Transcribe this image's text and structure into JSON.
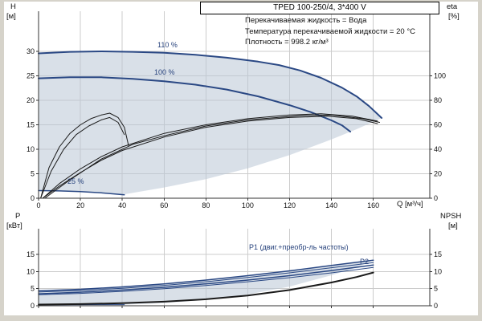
{
  "header": {
    "model": "TPED 100-250/4, 3*400 V",
    "info_lines": [
      "Перекачиваемая жидкость = Вода",
      "Температура перекачиваемой жидкости = 20 °C",
      "Плотность = 998.2 кг/м³"
    ]
  },
  "colors": {
    "accent_curve": "#2a4884",
    "black_curve": "#1a1a1a",
    "band_fill": "#b9c7d6",
    "grid": "#cccccc",
    "axis": "#333333",
    "frame_bg": "#d6d3ca",
    "plot_bg": "#ffffff",
    "label_blue": "#27427c"
  },
  "chart_data": [
    {
      "type": "line",
      "title": "Head and efficiency curves",
      "x_axis": {
        "label": "Q [м³/ч]",
        "min": 0,
        "max": 187,
        "ticks": [
          0,
          20,
          40,
          60,
          80,
          100,
          120,
          140,
          160
        ]
      },
      "y_left": {
        "label": "H",
        "unit": "[м]",
        "min": 0,
        "max": 38.2,
        "ticks": [
          0,
          5,
          10,
          15,
          20,
          25,
          30
        ]
      },
      "y_right": {
        "label": "eta",
        "unit": "[%]",
        "min": 0,
        "max": 152.8,
        "ticks": [
          0,
          20,
          40,
          60,
          80,
          100
        ]
      },
      "grid": true,
      "legend_position": "none",
      "curve_labels": [
        {
          "text": "110 %",
          "q": 60,
          "h": 31.2
        },
        {
          "text": "100 %",
          "q": 56,
          "h": 25.6
        },
        {
          "text": "25 %",
          "q": 15,
          "h": 3.2
        }
      ],
      "band": {
        "name": "allowed-operating-envelope",
        "opacity": 0.55,
        "points": [
          [
            0,
            1.6
          ],
          [
            0,
            29.6
          ],
          [
            15,
            29.9
          ],
          [
            30,
            30.0
          ],
          [
            45,
            29.9
          ],
          [
            60,
            29.7
          ],
          [
            75,
            29.3
          ],
          [
            90,
            28.7
          ],
          [
            105,
            27.9
          ],
          [
            115,
            27.2
          ],
          [
            125,
            26.1
          ],
          [
            135,
            24.6
          ],
          [
            145,
            22.6
          ],
          [
            152,
            20.8
          ],
          [
            158,
            18.8
          ],
          [
            164,
            16.4
          ],
          [
            160,
            15.6
          ],
          [
            152,
            14.1
          ],
          [
            140,
            12.0
          ],
          [
            120,
            8.8
          ],
          [
            100,
            6.1
          ],
          [
            80,
            3.9
          ],
          [
            60,
            2.2
          ],
          [
            41,
            0.8
          ],
          [
            30,
            1.1
          ],
          [
            20,
            1.35
          ],
          [
            10,
            1.5
          ]
        ]
      },
      "series": [
        {
          "name": "head-110-pct",
          "axis": "left",
          "color": "accent_curve",
          "width": 2,
          "points": [
            [
              0,
              29.6
            ],
            [
              15,
              29.9
            ],
            [
              30,
              30.0
            ],
            [
              45,
              29.9
            ],
            [
              60,
              29.7
            ],
            [
              75,
              29.3
            ],
            [
              90,
              28.7
            ],
            [
              105,
              27.9
            ],
            [
              115,
              27.2
            ],
            [
              125,
              26.1
            ],
            [
              135,
              24.6
            ],
            [
              145,
              22.6
            ],
            [
              152,
              20.8
            ],
            [
              158,
              18.8
            ],
            [
              164,
              16.4
            ]
          ]
        },
        {
          "name": "head-100-pct",
          "axis": "left",
          "color": "accent_curve",
          "width": 2,
          "points": [
            [
              0,
              24.5
            ],
            [
              15,
              24.7
            ],
            [
              30,
              24.7
            ],
            [
              45,
              24.4
            ],
            [
              60,
              23.9
            ],
            [
              75,
              23.2
            ],
            [
              90,
              22.2
            ],
            [
              105,
              20.8
            ],
            [
              120,
              19.0
            ],
            [
              130,
              17.6
            ],
            [
              140,
              15.9
            ],
            [
              145,
              14.9
            ],
            [
              149,
              13.6
            ]
          ]
        },
        {
          "name": "head-25-pct",
          "axis": "left",
          "color": "accent_curve",
          "width": 1.5,
          "points": [
            [
              0,
              1.55
            ],
            [
              10,
              1.5
            ],
            [
              20,
              1.35
            ],
            [
              30,
              1.1
            ],
            [
              41,
              0.7
            ]
          ]
        },
        {
          "name": "eff-pump-1",
          "axis": "right",
          "color": "black_curve",
          "width": 1,
          "points": [
            [
              2,
              0
            ],
            [
              10,
              12
            ],
            [
              20,
              24
            ],
            [
              30,
              34
            ],
            [
              40,
              42
            ],
            [
              60,
              53
            ],
            [
              80,
              60
            ],
            [
              100,
              65
            ],
            [
              120,
              68
            ],
            [
              135,
              69
            ],
            [
              150,
              67
            ],
            [
              162,
              63
            ]
          ]
        },
        {
          "name": "eff-pump-2",
          "axis": "right",
          "color": "black_curve",
          "width": 1,
          "points": [
            [
              2,
              0
            ],
            [
              10,
              10
            ],
            [
              20,
              21
            ],
            [
              30,
              31
            ],
            [
              40,
              39
            ],
            [
              60,
              50
            ],
            [
              80,
              58
            ],
            [
              100,
              63
            ],
            [
              120,
              66
            ],
            [
              138,
              67
            ],
            [
              152,
              65
            ],
            [
              162,
              61
            ]
          ]
        },
        {
          "name": "eff-pump-3",
          "axis": "right",
          "color": "black_curve",
          "width": 1,
          "points": [
            [
              3,
              0
            ],
            [
              15,
              15
            ],
            [
              30,
              32
            ],
            [
              45,
              44
            ],
            [
              60,
              51
            ],
            [
              80,
              59
            ],
            [
              100,
              64
            ],
            [
              125,
              67.5
            ],
            [
              140,
              68
            ],
            [
              155,
              65
            ],
            [
              163,
              62
            ]
          ]
        },
        {
          "name": "eff-25-a",
          "axis": "right",
          "color": "black_curve",
          "width": 1,
          "points": [
            [
              1,
              0
            ],
            [
              5,
              25
            ],
            [
              10,
              42
            ],
            [
              15,
              53
            ],
            [
              20,
              60
            ],
            [
              25,
              65
            ],
            [
              30,
              68
            ],
            [
              34,
              69.5
            ],
            [
              38,
              66
            ],
            [
              41,
              58
            ],
            [
              43,
              43
            ]
          ]
        },
        {
          "name": "eff-25-b",
          "axis": "right",
          "color": "black_curve",
          "width": 1,
          "points": [
            [
              1,
              0
            ],
            [
              6,
              22
            ],
            [
              12,
              40
            ],
            [
              18,
              52
            ],
            [
              24,
              59
            ],
            [
              30,
              64
            ],
            [
              34,
              66
            ],
            [
              38,
              62
            ],
            [
              41,
              52
            ]
          ]
        }
      ]
    },
    {
      "type": "line",
      "title": "Power and NPSH curves",
      "x_axis": {
        "label": "",
        "min": 0,
        "max": 187,
        "ticks": [
          0,
          20,
          40,
          60,
          80,
          100,
          120,
          140,
          160
        ]
      },
      "y_left": {
        "label": "P",
        "unit": "[кВт]",
        "min": 0,
        "max": 22.5,
        "ticks": [
          0,
          5,
          10,
          15
        ]
      },
      "y_right": {
        "label": "NPSH",
        "unit": "[м]",
        "min": 0,
        "max": 22.5,
        "ticks": [
          0,
          5,
          10,
          15
        ]
      },
      "grid": true,
      "legend_position": "none",
      "curve_labels": [
        {
          "text": "P1  (двиг.+преобр-ль частоты)",
          "q": 101,
          "p": 17.0
        },
        {
          "text": "P2",
          "q": 154,
          "p": 13.0
        }
      ],
      "band": {
        "name": "power-operating-envelope",
        "opacity": 0.55,
        "points": [
          [
            0,
            0.28
          ],
          [
            0,
            4.35
          ],
          [
            20,
            4.8
          ],
          [
            40,
            5.5
          ],
          [
            60,
            6.4
          ],
          [
            80,
            7.5
          ],
          [
            100,
            8.8
          ],
          [
            120,
            10.2
          ],
          [
            140,
            11.8
          ],
          [
            160,
            13.3
          ],
          [
            150,
            10.8
          ],
          [
            140,
            8.9
          ],
          [
            120,
            5.6
          ],
          [
            100,
            3.3
          ],
          [
            80,
            1.7
          ],
          [
            60,
            0.8
          ],
          [
            41,
            0.33
          ],
          [
            20,
            0.3
          ],
          [
            10,
            0.29
          ]
        ]
      },
      "series": [
        {
          "name": "p1-upper",
          "axis": "left",
          "color": "accent_curve",
          "width": 1.5,
          "points": [
            [
              0,
              4.35
            ],
            [
              20,
              4.8
            ],
            [
              40,
              5.5
            ],
            [
              60,
              6.4
            ],
            [
              80,
              7.5
            ],
            [
              100,
              8.8
            ],
            [
              120,
              10.2
            ],
            [
              140,
              11.8
            ],
            [
              160,
              13.3
            ]
          ]
        },
        {
          "name": "p1-lower",
          "axis": "left",
          "color": "accent_curve",
          "width": 1,
          "points": [
            [
              0,
              4.0
            ],
            [
              20,
              4.45
            ],
            [
              40,
              5.1
            ],
            [
              60,
              5.95
            ],
            [
              80,
              7.0
            ],
            [
              100,
              8.25
            ],
            [
              120,
              9.6
            ],
            [
              140,
              11.1
            ],
            [
              160,
              12.6
            ]
          ]
        },
        {
          "name": "p2-upper",
          "axis": "left",
          "color": "accent_curve",
          "width": 1.5,
          "points": [
            [
              0,
              3.5
            ],
            [
              20,
              3.95
            ],
            [
              40,
              4.6
            ],
            [
              60,
              5.4
            ],
            [
              80,
              6.4
            ],
            [
              100,
              7.5
            ],
            [
              120,
              8.8
            ],
            [
              140,
              10.3
            ],
            [
              160,
              11.9
            ]
          ]
        },
        {
          "name": "p2-lower",
          "axis": "left",
          "color": "accent_curve",
          "width": 1,
          "points": [
            [
              0,
              3.2
            ],
            [
              20,
              3.6
            ],
            [
              40,
              4.2
            ],
            [
              60,
              5.0
            ],
            [
              80,
              5.9
            ],
            [
              100,
              7.0
            ],
            [
              120,
              8.2
            ],
            [
              140,
              9.6
            ],
            [
              160,
              11.2
            ]
          ]
        },
        {
          "name": "p-25-pct",
          "axis": "left",
          "color": "accent_curve",
          "width": 1,
          "points": [
            [
              0,
              0.28
            ],
            [
              12,
              0.3
            ],
            [
              25,
              0.32
            ],
            [
              41,
              0.33
            ]
          ]
        },
        {
          "name": "npsh",
          "axis": "right",
          "color": "black_curve",
          "width": 2,
          "points": [
            [
              0,
              0.35
            ],
            [
              20,
              0.5
            ],
            [
              40,
              0.75
            ],
            [
              60,
              1.2
            ],
            [
              80,
              1.9
            ],
            [
              100,
              3.0
            ],
            [
              120,
              4.6
            ],
            [
              140,
              6.8
            ],
            [
              152,
              8.4
            ],
            [
              160,
              9.7
            ]
          ]
        }
      ]
    }
  ]
}
